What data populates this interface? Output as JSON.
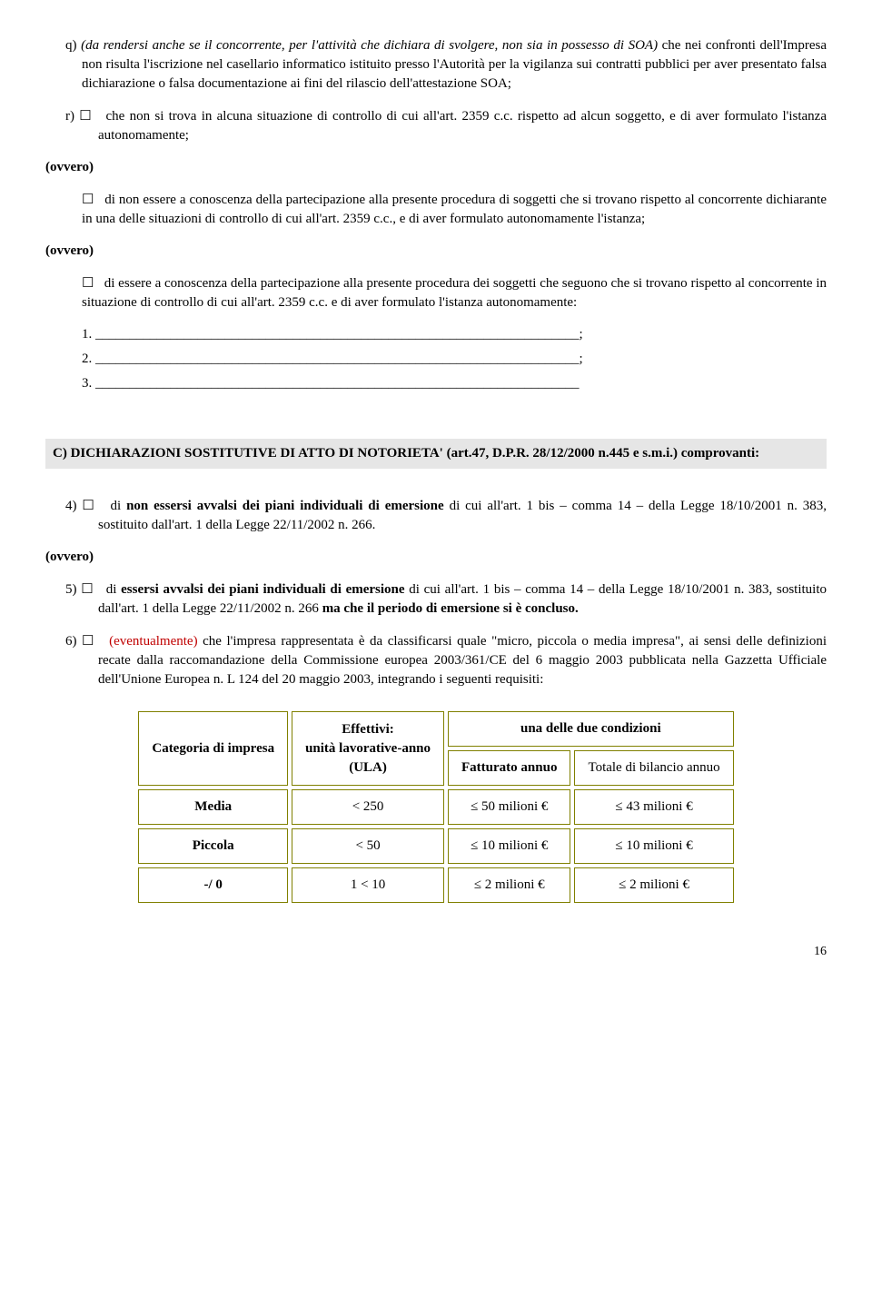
{
  "q": {
    "prefix": "q)",
    "text": "(da rendersi anche se il concorrente, per l'attività che dichiara di svolgere, non sia in possesso di SOA)",
    "rest": " che nei confronti dell'Impresa non risulta l'iscrizione nel casellario informatico istituito presso l'Autorità per la vigilanza sui contratti pubblici per aver presentato falsa dichiarazione o falsa documentazione ai fini del rilascio dell'attestazione SOA;"
  },
  "r": {
    "prefix": "r)",
    "box": "☐",
    "text": "che non si trova in alcuna situazione di controllo di cui all'art. 2359 c.c. rispetto ad alcun soggetto, e di aver formulato l'istanza autonomamente;"
  },
  "ovvero": "(ovvero)",
  "ov1": {
    "box": "☐",
    "text": "di non essere a conoscenza della partecipazione alla presente procedura di soggetti che si trovano rispetto al concorrente dichiarante in una delle situazioni di controllo di cui all'art. 2359 c.c., e di aver formulato autonomamente l'istanza;"
  },
  "ov2": {
    "box": "☐",
    "text": "di essere a conoscenza della partecipazione alla presente procedura dei soggetti che seguono che si trovano rispetto al concorrente in situazione di controllo di cui all'art. 2359 c.c. e di aver formulato l'istanza autonomamente:"
  },
  "lines": {
    "l1": "1. _______________________________________________________________________;",
    "l2": "2. _______________________________________________________________________;",
    "l3": "3. _______________________________________________________________________"
  },
  "sectC": "C) DICHIARAZIONI SOSTITUTIVE DI ATTO DI NOTORIETA' (art.47, D.P.R. 28/12/2000 n.445 e s.m.i.) comprovanti:",
  "p4": {
    "prefix": "4)",
    "box": "☐",
    "a": "di ",
    "b": "non essersi avvalsi dei piani individuali di emersione",
    "c": " di cui all'art. 1 bis – comma 14 – della Legge 18/10/2001 n. 383, sostituito dall'art. 1 della Legge 22/11/2002 n. 266."
  },
  "p5": {
    "prefix": "5)",
    "box": "☐",
    "a": "di ",
    "b": "essersi avvalsi dei piani individuali di emersione",
    "c": " di cui all'art. 1 bis – comma 14 – della Legge 18/10/2001 n. 383, sostituito dall'art. 1 della Legge 22/11/2002 n. 266 ",
    "d": "ma che il periodo di emersione si è concluso."
  },
  "p6": {
    "prefix": "6)",
    "box": "☐",
    "ev": "(eventualmente)",
    "text": " che l'impresa rappresentata è da classificarsi quale \"micro, piccola o media impresa\", ai sensi delle definizioni recate dalla raccomandazione della Commissione europea 2003/361/CE del 6 maggio 2003 pubblicata nella Gazzetta Ufficiale dell'Unione Europea n.  L 124 del 20 maggio 2003, integrando i seguenti requisiti:"
  },
  "tbl": {
    "h1": "Categoria di impresa",
    "h2": "Effettivi:\nunità lavorative-anno\n(ULA)",
    "h3": "una delle due condizioni",
    "h3a": "Fatturato annuo",
    "h3b": "Totale di bilancio annuo",
    "r1": [
      "Media",
      "< 250",
      "≤ 50 milioni €",
      "≤ 43 milioni €"
    ],
    "r2": [
      "Piccola",
      "< 50",
      "≤ 10 milioni €",
      "≤ 10 milioni €"
    ],
    "r3": [
      "-/ 0",
      "1 < 10",
      "≤ 2 milioni €",
      "≤ 2 milioni €"
    ]
  },
  "page": "16"
}
